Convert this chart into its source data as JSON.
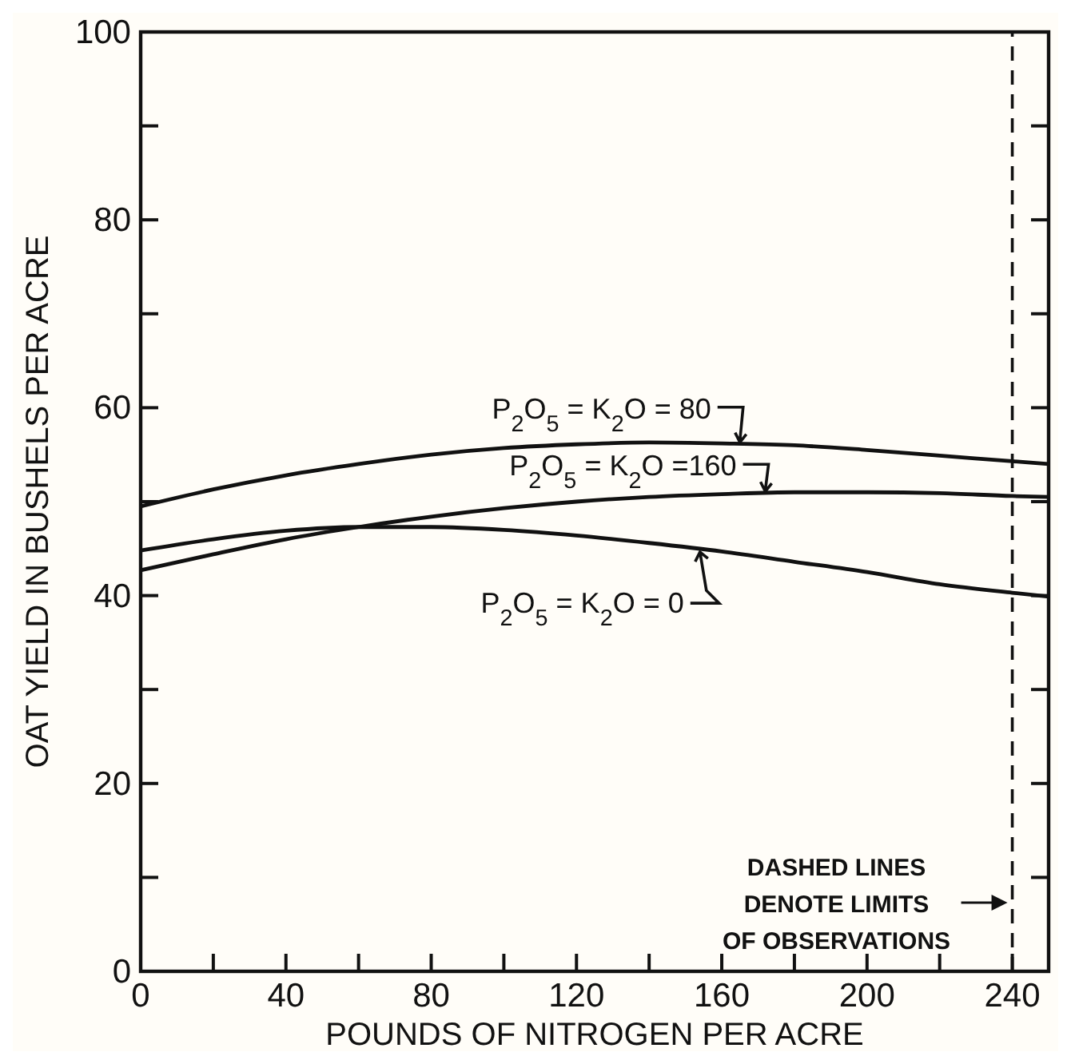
{
  "chart_data": {
    "type": "line",
    "xlabel": "POUNDS OF NITROGEN PER ACRE",
    "ylabel": "OAT YIELD IN BUSHELS PER ACRE",
    "x": [
      0,
      20,
      40,
      60,
      80,
      100,
      120,
      140,
      160,
      180,
      200,
      220,
      240,
      250
    ],
    "series": [
      {
        "name": "P$_{2}$O$_{5}$ = K$_{2}$O = 80",
        "color": "#111111",
        "values": [
          49.5,
          51.3,
          52.8,
          54.0,
          55.0,
          55.7,
          56.1,
          56.3,
          56.2,
          56.0,
          55.5,
          54.9,
          54.3,
          54.0
        ]
      },
      {
        "name": "P$_{2}$O$_{5}$ = K$_{2}$O =160",
        "color": "#111111",
        "values": [
          42.7,
          44.4,
          46.0,
          47.3,
          48.4,
          49.3,
          50.0,
          50.5,
          50.8,
          51.0,
          51.0,
          50.9,
          50.6,
          50.5
        ]
      },
      {
        "name": "P$_{2}$O$_{5}$ = K$_{2}$O = 0",
        "color": "#111111",
        "values": [
          44.8,
          46.0,
          46.9,
          47.3,
          47.3,
          47.0,
          46.4,
          45.6,
          44.7,
          43.6,
          42.5,
          41.2,
          40.3,
          39.9
        ]
      }
    ],
    "xlim": [
      0,
      250
    ],
    "xticks": [
      0,
      {
        "value": 20,
        "label": null
      },
      40,
      {
        "value": 60,
        "label": null
      },
      80,
      {
        "value": 100,
        "label": null
      },
      120,
      {
        "value": 140,
        "label": null
      },
      160,
      {
        "value": 180,
        "label": null
      },
      200,
      {
        "value": 220,
        "label": null
      },
      240
    ],
    "ylim": [
      0,
      100
    ],
    "yticks": [
      0,
      {
        "value": 10,
        "label": null
      },
      20,
      {
        "value": 30,
        "label": null
      },
      40,
      {
        "value": 50,
        "label": null
      },
      60,
      {
        "value": 70,
        "label": null
      },
      80,
      {
        "value": 90,
        "label": null
      },
      100
    ],
    "ref_lines": [
      {
        "axis": "x",
        "value": 240,
        "label": "DASHED LINES\nDENOTE LIMITS\nOF OBSERVATIONS",
        "line_style": "dashed",
        "color": "#111111"
      }
    ],
    "grid": false,
    "legend": "center",
    "marker": "none",
    "line_style": "solid"
  }
}
